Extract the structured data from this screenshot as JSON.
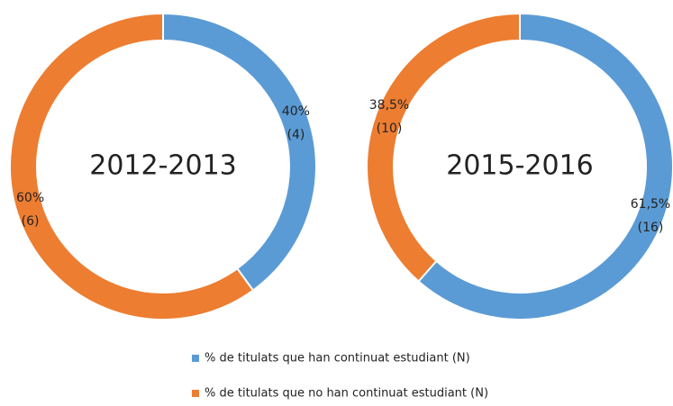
{
  "legend": {
    "labels": [
      "% de titulats que han continuat estudiant (N)",
      "% de titulats que no han continuat estudiant (N)"
    ],
    "colors": [
      "#5b9bd5",
      "#ed7d31"
    ]
  },
  "chart_data": [
    {
      "type": "pie",
      "title": "2012-2013",
      "values": [
        40,
        60
      ],
      "value_labels": [
        "40%",
        "60%"
      ],
      "count_labels": [
        "(4)",
        "(6)"
      ]
    },
    {
      "type": "pie",
      "title": "2015-2016",
      "values": [
        61.5,
        38.5
      ],
      "value_labels": [
        "61,5%",
        "38,5%"
      ],
      "count_labels": [
        "(16)",
        "(10)"
      ]
    }
  ]
}
